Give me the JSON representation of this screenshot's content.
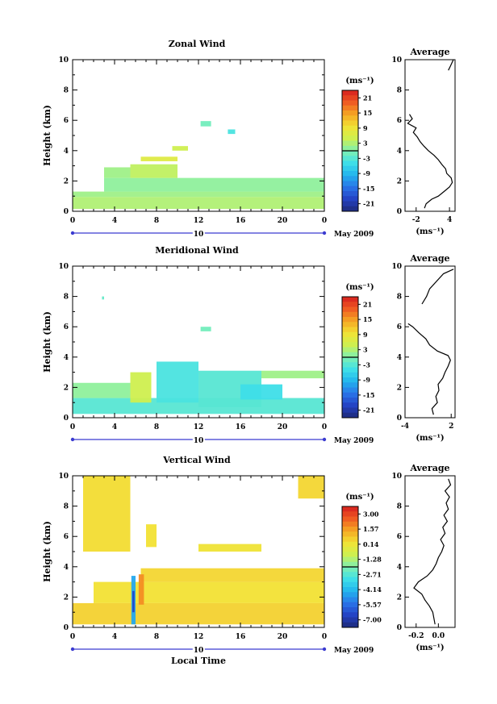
{
  "figure": {
    "date_label": "May 2009",
    "day_label": "10",
    "xlabel": "Local Time",
    "ylabel": "Height (km)",
    "average_title": "Average",
    "colorbar_unit": "(ms⁻¹)",
    "average_xlabel": "(ms⁻¹)"
  },
  "chart_data": [
    {
      "type": "heatmap",
      "title": "Zonal Wind",
      "xlabel": "",
      "ylabel": "Height (km)",
      "xlim": [
        0,
        24
      ],
      "ylim": [
        0,
        10
      ],
      "xticks": [
        "0",
        "4",
        "8",
        "12",
        "16",
        "20",
        "0"
      ],
      "yticks": [
        "0",
        "2",
        "4",
        "6",
        "8",
        "10"
      ],
      "colorbar": {
        "unit": "(ms⁻¹)",
        "ticks": [
          "21",
          "15",
          "9",
          "3",
          "-3",
          "-9",
          "-15",
          "-21"
        ],
        "range": [
          -24,
          24
        ]
      },
      "data_regions": [
        {
          "x": [
            0,
            24
          ],
          "y": [
            0.15,
            0.95
          ],
          "value": 3
        },
        {
          "x": [
            0,
            24
          ],
          "y": [
            0.95,
            1.3
          ],
          "value": 2
        },
        {
          "x": [
            3,
            24
          ],
          "y": [
            1.3,
            2.2
          ],
          "value": 1
        },
        {
          "x": [
            3,
            5.5
          ],
          "y": [
            2.2,
            2.9
          ],
          "value": 2
        },
        {
          "x": [
            5.5,
            10
          ],
          "y": [
            2.2,
            3.1
          ],
          "value": 4
        },
        {
          "x": [
            6.5,
            10
          ],
          "y": [
            3.3,
            3.6
          ],
          "value": 7
        },
        {
          "x": [
            9.5,
            11
          ],
          "y": [
            4.0,
            4.3
          ],
          "value": 5
        },
        {
          "x": [
            12.2,
            13.2
          ],
          "y": [
            5.6,
            5.95
          ],
          "value": -1
        },
        {
          "x": [
            14.8,
            15.5
          ],
          "y": [
            5.1,
            5.4
          ],
          "value": -4
        }
      ],
      "average": {
        "xlim": [
          -4,
          5
        ],
        "xticks": [
          "-2",
          "4"
        ],
        "ylim": [
          0,
          10
        ],
        "profile_y": [
          0.2,
          0.5,
          0.8,
          1.0,
          1.3,
          1.6,
          1.9,
          2.2,
          2.5,
          2.8,
          3.1,
          3.4,
          3.7,
          4.0,
          4.3,
          4.6,
          4.9,
          5.2,
          5.5,
          5.8,
          6.1,
          6.4,
          9.3,
          9.6,
          10.0
        ],
        "profile_x": [
          -0.5,
          -0.2,
          0.8,
          2.0,
          3.0,
          4.0,
          4.5,
          4.3,
          3.5,
          3.3,
          2.6,
          2.0,
          1.2,
          0.2,
          -0.6,
          -1.3,
          -1.8,
          -2.5,
          -2.0,
          -3.5,
          -2.7,
          -3.2,
          3.8,
          4.2,
          4.7
        ]
      }
    },
    {
      "type": "heatmap",
      "title": "Meridional Wind",
      "xlabel": "",
      "ylabel": "Height (km)",
      "xlim": [
        0,
        24
      ],
      "ylim": [
        0,
        10
      ],
      "xticks": [
        "0",
        "4",
        "8",
        "12",
        "16",
        "20",
        "0"
      ],
      "yticks": [
        "0",
        "2",
        "4",
        "6",
        "8",
        "10"
      ],
      "colorbar": {
        "unit": "(ms⁻¹)",
        "ticks": [
          "21",
          "15",
          "9",
          "3",
          "-3",
          "-9",
          "-15",
          "-21"
        ],
        "range": [
          -24,
          24
        ]
      },
      "data_regions": [
        {
          "x": [
            0,
            24
          ],
          "y": [
            0.25,
            1.3
          ],
          "value": -3
        },
        {
          "x": [
            0,
            5.5
          ],
          "y": [
            1.3,
            2.3
          ],
          "value": 1
        },
        {
          "x": [
            5.5,
            7.5
          ],
          "y": [
            1.0,
            3.0
          ],
          "value": 5
        },
        {
          "x": [
            8,
            12
          ],
          "y": [
            1.0,
            3.7
          ],
          "value": -4
        },
        {
          "x": [
            12,
            18
          ],
          "y": [
            0.7,
            3.1
          ],
          "value": -3
        },
        {
          "x": [
            16,
            20
          ],
          "y": [
            1.2,
            2.2
          ],
          "value": -5
        },
        {
          "x": [
            18,
            24
          ],
          "y": [
            2.6,
            3.1
          ],
          "value": 2
        },
        {
          "x": [
            12.2,
            13.2
          ],
          "y": [
            5.7,
            6.0
          ],
          "value": -1
        },
        {
          "x": [
            2.8,
            3.0
          ],
          "y": [
            7.8,
            8.0
          ],
          "value": -2
        }
      ],
      "average": {
        "xlim": [
          -4,
          2.5
        ],
        "xticks": [
          "-4",
          "2"
        ],
        "ylim": [
          0,
          10
        ],
        "profile_y": [
          0.2,
          0.6,
          1.0,
          1.4,
          1.8,
          2.2,
          2.6,
          3.0,
          3.4,
          3.8,
          4.1,
          4.4,
          4.8,
          5.2,
          5.6,
          6.0,
          6.2,
          7.5,
          8.0,
          8.5,
          9.5,
          9.8
        ],
        "profile_x": [
          -0.3,
          -0.5,
          0.2,
          0.0,
          0.4,
          0.3,
          0.9,
          1.2,
          1.6,
          1.9,
          1.6,
          0.2,
          -0.8,
          -1.3,
          -2.2,
          -3.0,
          -3.6,
          -1.8,
          -1.2,
          -0.8,
          1.0,
          2.3
        ]
      }
    },
    {
      "type": "heatmap",
      "title": "Vertical Wind",
      "xlabel": "Local Time",
      "ylabel": "Height (km)",
      "xlim": [
        0,
        24
      ],
      "ylim": [
        0,
        10
      ],
      "xticks": [
        "0",
        "4",
        "8",
        "12",
        "16",
        "20",
        "0"
      ],
      "yticks": [
        "0",
        "2",
        "4",
        "6",
        "8",
        "10"
      ],
      "colorbar": {
        "unit": "(ms⁻¹)",
        "ticks": [
          "3.00",
          "1.57",
          "0.14",
          "-1.28",
          "-2.71",
          "-4.14",
          "-5.57",
          "-7.00"
        ],
        "range": [
          -7.7,
          3.7
        ]
      },
      "data_regions": [
        {
          "x": [
            0,
            24
          ],
          "y": [
            0.2,
            1.6
          ],
          "value": 0.6
        },
        {
          "x": [
            2,
            24
          ],
          "y": [
            1.6,
            3.0
          ],
          "value": 0.3
        },
        {
          "x": [
            6.5,
            24
          ],
          "y": [
            3.0,
            3.9
          ],
          "value": 0.5
        },
        {
          "x": [
            5.6,
            6.0
          ],
          "y": [
            0.2,
            3.4
          ],
          "value": -4.5
        },
        {
          "x": [
            5.7,
            5.9
          ],
          "y": [
            1.0,
            2.4
          ],
          "value": -6.5
        },
        {
          "x": [
            6.3,
            6.8
          ],
          "y": [
            1.5,
            3.5
          ],
          "value": 1.8
        },
        {
          "x": [
            1.0,
            5.5
          ],
          "y": [
            5.0,
            10
          ],
          "value": 0.4
        },
        {
          "x": [
            7.0,
            8.0
          ],
          "y": [
            5.3,
            6.8
          ],
          "value": 0.3
        },
        {
          "x": [
            12,
            18
          ],
          "y": [
            5.0,
            5.5
          ],
          "value": 0.2
        },
        {
          "x": [
            21.5,
            24
          ],
          "y": [
            8.5,
            10
          ],
          "value": 0.5
        }
      ],
      "average": {
        "xlim": [
          -0.3,
          0.15
        ],
        "xticks": [
          "-0.2",
          "0.0"
        ],
        "ylim": [
          0,
          10
        ],
        "profile_y": [
          0.2,
          0.6,
          1.0,
          1.4,
          1.8,
          2.2,
          2.6,
          3.0,
          3.4,
          3.8,
          4.2,
          4.6,
          5.0,
          5.4,
          5.8,
          6.2,
          6.6,
          7.0,
          7.4,
          7.8,
          8.2,
          8.6,
          9.0,
          9.4,
          9.8
        ],
        "profile_x": [
          -0.03,
          -0.04,
          -0.05,
          -0.08,
          -0.12,
          -0.15,
          -0.22,
          -0.18,
          -0.1,
          -0.05,
          -0.02,
          0.0,
          0.03,
          0.05,
          0.02,
          0.06,
          0.04,
          0.08,
          0.05,
          0.09,
          0.07,
          0.1,
          0.06,
          0.11,
          0.09
        ]
      }
    }
  ]
}
